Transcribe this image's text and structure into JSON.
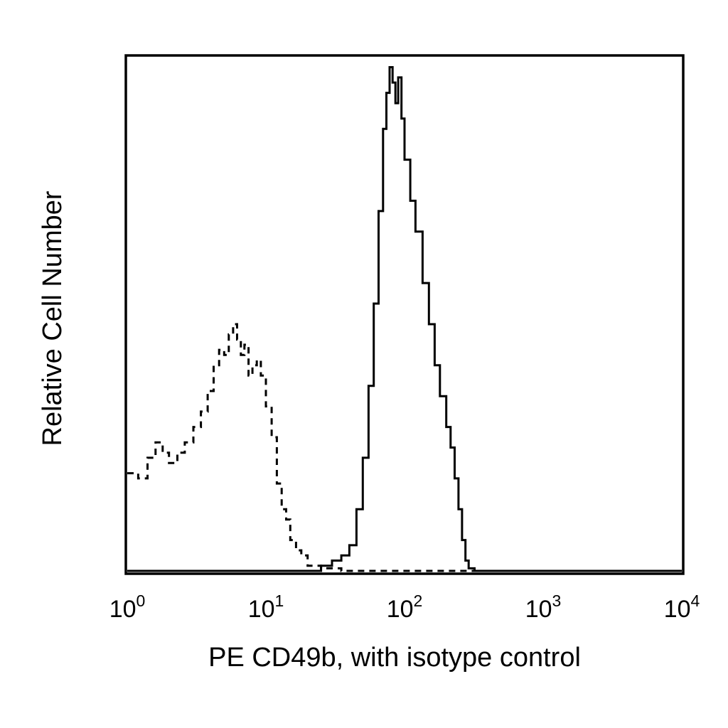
{
  "chart_data": {
    "type": "area",
    "title": "",
    "xlabel": "PE CD49b, with isotype control",
    "ylabel": "Relative Cell Number",
    "x_scale": "log",
    "xlim": [
      1,
      10000
    ],
    "ylim": [
      0,
      100
    ],
    "y_ticks_shown": false,
    "grid": false,
    "legend": "none",
    "x_ticks": [
      {
        "base": "10",
        "exp": "0"
      },
      {
        "base": "10",
        "exp": "1"
      },
      {
        "base": "10",
        "exp": "2"
      },
      {
        "base": "10",
        "exp": "3"
      },
      {
        "base": "10",
        "exp": "4"
      }
    ],
    "series": [
      {
        "style": "dashed",
        "color": "#000000",
        "points": [
          [
            1.0,
            19
          ],
          [
            1.2,
            18
          ],
          [
            1.4,
            22
          ],
          [
            1.6,
            25
          ],
          [
            1.8,
            23
          ],
          [
            2.0,
            21
          ],
          [
            2.3,
            23
          ],
          [
            2.6,
            25
          ],
          [
            3.0,
            28
          ],
          [
            3.4,
            31
          ],
          [
            3.8,
            35
          ],
          [
            4.2,
            40
          ],
          [
            4.6,
            43
          ],
          [
            5.0,
            42
          ],
          [
            5.4,
            46
          ],
          [
            5.8,
            48
          ],
          [
            6.2,
            45
          ],
          [
            6.6,
            42
          ],
          [
            7.0,
            44
          ],
          [
            7.5,
            38
          ],
          [
            8.0,
            40
          ],
          [
            8.6,
            41
          ],
          [
            9.2,
            38
          ],
          [
            10.0,
            32
          ],
          [
            11.0,
            26
          ],
          [
            12.0,
            17
          ],
          [
            13.0,
            12
          ],
          [
            14.0,
            10
          ],
          [
            15.0,
            6
          ],
          [
            16.5,
            4
          ],
          [
            18.0,
            3
          ],
          [
            20.0,
            1
          ],
          [
            25.0,
            0.5
          ],
          [
            35.0,
            0
          ],
          [
            100.0,
            0
          ],
          [
            1000.0,
            0
          ],
          [
            10000.0,
            0
          ]
        ]
      },
      {
        "style": "solid",
        "color": "#000000",
        "points": [
          [
            1.0,
            0
          ],
          [
            10.0,
            0
          ],
          [
            20.0,
            0
          ],
          [
            25.0,
            1
          ],
          [
            30.0,
            2
          ],
          [
            35.0,
            3
          ],
          [
            40.0,
            5
          ],
          [
            45.0,
            12
          ],
          [
            50.0,
            22
          ],
          [
            55.0,
            36
          ],
          [
            60.0,
            52
          ],
          [
            65.0,
            70
          ],
          [
            70.0,
            86
          ],
          [
            74.0,
            93
          ],
          [
            78.0,
            98
          ],
          [
            82.0,
            95
          ],
          [
            86.0,
            91
          ],
          [
            90.0,
            96
          ],
          [
            95.0,
            88
          ],
          [
            100.0,
            80
          ],
          [
            110.0,
            72
          ],
          [
            120.0,
            66
          ],
          [
            135.0,
            56
          ],
          [
            150.0,
            48
          ],
          [
            165.0,
            40
          ],
          [
            180.0,
            34
          ],
          [
            200.0,
            28
          ],
          [
            215.0,
            24
          ],
          [
            230.0,
            18
          ],
          [
            245.0,
            12
          ],
          [
            260.0,
            6
          ],
          [
            275.0,
            2
          ],
          [
            290.0,
            0.5
          ],
          [
            320.0,
            0
          ],
          [
            1000.0,
            0
          ],
          [
            10000.0,
            0
          ]
        ]
      }
    ]
  }
}
